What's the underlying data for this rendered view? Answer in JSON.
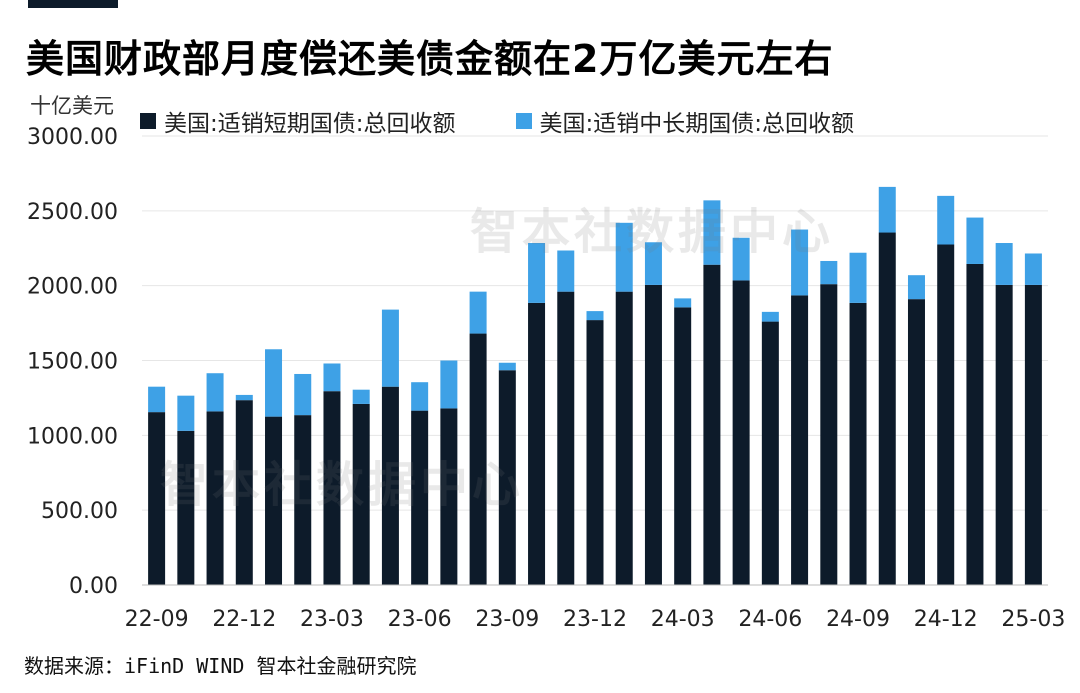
{
  "header": {
    "title": "美国财政部月度偿还美债金额在2万亿美元左右",
    "unit": "十亿美元"
  },
  "watermark": "智本社数据中心",
  "source": "数据来源：iFinD WIND 智本社金融研究院",
  "colors": {
    "short": "#0d1b2a",
    "long": "#3ea1e6",
    "grid": "#e6e6e6"
  },
  "chart_data": {
    "type": "bar",
    "stacked": true,
    "categories": [
      "22-09",
      "22-10",
      "22-11",
      "22-12",
      "23-01",
      "23-02",
      "23-03",
      "23-04",
      "23-05",
      "23-06",
      "23-07",
      "23-08",
      "23-09",
      "23-10",
      "23-11",
      "23-12",
      "24-01",
      "24-02",
      "24-03",
      "24-04",
      "24-05",
      "24-06",
      "24-07",
      "24-08",
      "24-09",
      "24-10",
      "24-11",
      "24-12",
      "25-01",
      "25-02",
      "25-03"
    ],
    "tick_labels": [
      "22-09",
      "22-12",
      "23-03",
      "23-06",
      "23-09",
      "23-12",
      "24-03",
      "24-06",
      "24-09",
      "24-12",
      "25-03"
    ],
    "series": [
      {
        "name": "美国:适销短期国债:总回收额",
        "values": [
          1155,
          1030,
          1160,
          1235,
          1125,
          1135,
          1295,
          1210,
          1325,
          1165,
          1180,
          1680,
          1435,
          1885,
          1960,
          1770,
          1960,
          2005,
          1855,
          2140,
          2035,
          1760,
          1935,
          2010,
          1885,
          2355,
          1910,
          2275,
          2145,
          2005,
          2005
        ]
      },
      {
        "name": "美国:适销中长期国债:总回收额",
        "values": [
          170,
          235,
          255,
          35,
          450,
          275,
          185,
          95,
          515,
          190,
          320,
          280,
          50,
          400,
          275,
          60,
          460,
          285,
          60,
          430,
          285,
          65,
          440,
          155,
          335,
          305,
          160,
          325,
          310,
          280,
          210
        ]
      }
    ],
    "y_ticks": [
      "0.00",
      "500.00",
      "1000.00",
      "1500.00",
      "2000.00",
      "2500.00",
      "3000.00"
    ],
    "ylim": [
      0,
      3000
    ]
  }
}
